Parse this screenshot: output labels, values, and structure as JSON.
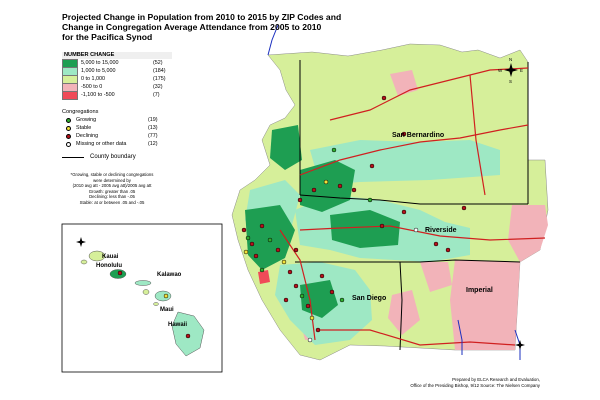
{
  "title": {
    "line1": "Projected Change in Population from 2010 to 2015 by ZIP Codes and",
    "line2": "Change in Congregation Average Attendance from 2005 to 2010",
    "line3": "for the Pacifica Synod"
  },
  "legend": {
    "header": "NUMBER CHANGE",
    "classes": [
      {
        "label": "5,000  to  15,000",
        "count": "(52)",
        "color": "#1e9e52"
      },
      {
        "label": "1,000  to    5,000",
        "count": "(184)",
        "color": "#9ee8c4"
      },
      {
        "label": "0  to    1,000",
        "count": "(175)",
        "color": "#d6ef9a"
      },
      {
        "label": "-500  to          0",
        "count": "(32)",
        "color": "#f2b3b9"
      },
      {
        "label": "-1,100  to     -500",
        "count": "(7)",
        "color": "#f04a58"
      }
    ],
    "congregations_title": "Congregations",
    "congregations": [
      {
        "label": "Growing",
        "count": "(19)",
        "color": "#2fae2f"
      },
      {
        "label": "Stable",
        "count": "(13)",
        "color": "#f2e23a"
      },
      {
        "label": "Declining",
        "count": "(77)",
        "color": "#b5121b"
      },
      {
        "label": "Missing or other data",
        "count": "(12)",
        "color": "#ffffff"
      }
    ],
    "boundary_label": "County boundary"
  },
  "note": {
    "line1": "*Growing, stable or declining congregations",
    "line2": "were determined by",
    "line3": "(2010 avg att - 2005 avg att)/2005 avg att",
    "line4": "Growth:  greater than .05",
    "line5": "Declining:  less than -.05",
    "line6": "Stable:  at or between .05 and -.05"
  },
  "counties": {
    "san_bernardino": "San Bernardino",
    "riverside": "Riverside",
    "san_diego": "San Diego",
    "imperial": "Imperial"
  },
  "islands": {
    "kauai": "Kauai",
    "honolulu": "Honolulu",
    "kalawao": "Kalawao",
    "maui": "Maui",
    "hawaii": "Hawaii"
  },
  "compass": {
    "n": "N",
    "s": "S",
    "e": "E",
    "w": "W"
  },
  "credit": {
    "line1": "Prepared by ELCA Research and Evaluation,",
    "line2": "Office of the Presiding Bishop,  9/12 Source: The Nielsen Company"
  },
  "colors": {
    "ocean": "#ffffff",
    "highway": "#d02020",
    "coast_line": "#1a2fbf",
    "county_boundary": "#000000",
    "inner_boundary": "#666666"
  }
}
